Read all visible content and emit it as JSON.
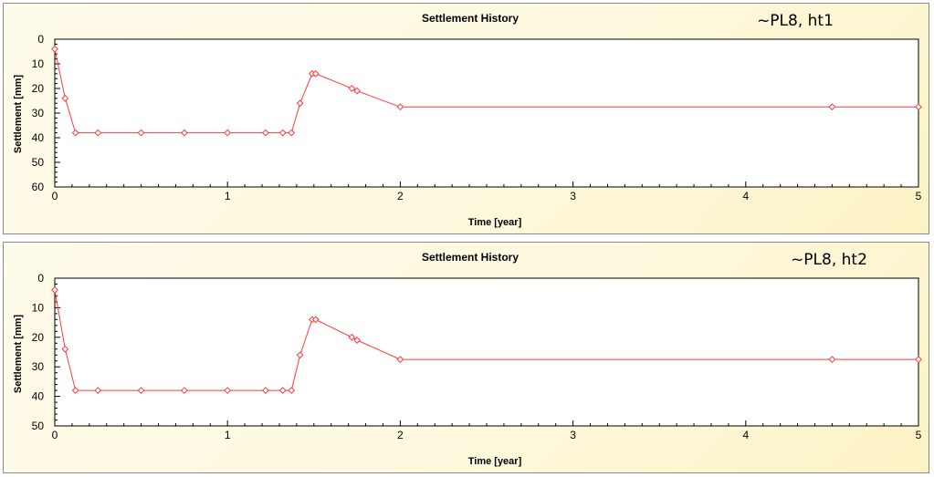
{
  "colors": {
    "series": "#ff3a3a",
    "panel_bg": "#fef9df",
    "plot_bg": "#ffffff",
    "frame": "#000000"
  },
  "chart_data": [
    {
      "type": "line",
      "title": "Settlement History",
      "annotation": "~PL8, ht1",
      "xlabel": "Time [year]",
      "ylabel": "Settlement [mm]",
      "xlim": [
        0,
        5
      ],
      "ylim": [
        60,
        0
      ],
      "y_inverted": true,
      "xticks": [
        "0",
        "1",
        "2",
        "3",
        "4",
        "5"
      ],
      "yticks": [
        "0",
        "10",
        "20",
        "30",
        "40",
        "50",
        "60"
      ],
      "grid": false,
      "marker": "diamond",
      "series": [
        {
          "x": [
            0,
            0.06,
            0.12,
            0.25,
            0.5,
            0.75,
            1.0,
            1.22,
            1.32,
            1.37,
            1.42,
            1.49,
            1.51,
            1.72,
            1.75,
            2.0,
            4.5,
            5.0
          ],
          "y": [
            4,
            24,
            38,
            38,
            38,
            38,
            38,
            38,
            38,
            38,
            26,
            14,
            14,
            20,
            21,
            27.5,
            27.5,
            27.5
          ]
        }
      ]
    },
    {
      "type": "line",
      "title": "Settlement History",
      "annotation": "~PL8, ht2",
      "xlabel": "Time [year]",
      "ylabel": "Settlement [mm]",
      "xlim": [
        0,
        5
      ],
      "ylim": [
        50,
        0
      ],
      "y_inverted": true,
      "xticks": [
        "0",
        "1",
        "2",
        "3",
        "4",
        "5"
      ],
      "yticks": [
        "0",
        "10",
        "20",
        "30",
        "40",
        "50"
      ],
      "grid": false,
      "marker": "diamond",
      "series": [
        {
          "x": [
            0,
            0.06,
            0.12,
            0.25,
            0.5,
            0.75,
            1.0,
            1.22,
            1.32,
            1.37,
            1.42,
            1.49,
            1.51,
            1.72,
            1.75,
            2.0,
            4.5,
            5.0
          ],
          "y": [
            4,
            24,
            38,
            38,
            38,
            38,
            38,
            38,
            38,
            38,
            26,
            14,
            14,
            20,
            21,
            27.5,
            27.5,
            27.5
          ]
        }
      ]
    }
  ]
}
